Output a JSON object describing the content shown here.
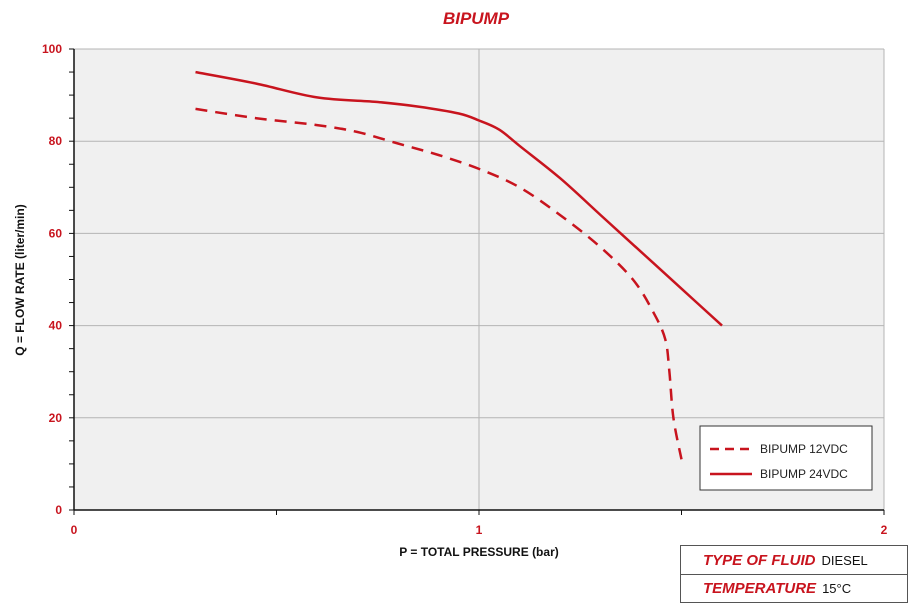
{
  "chart_data": {
    "type": "line",
    "title": "BIPUMP",
    "xlabel": "P = TOTAL PRESSURE (bar)",
    "ylabel": "Q = FLOW RATE (liter/min)",
    "xlim": [
      0,
      2
    ],
    "ylim": [
      0,
      100
    ],
    "xticks": [
      0,
      1,
      2
    ],
    "yticks": [
      0,
      20,
      40,
      60,
      80,
      100
    ],
    "grid": true,
    "legend_position": "bottom-right",
    "colors": {
      "series": "#c8141e",
      "plot_bg": "#f0f0f0",
      "grid": "#b4b4b4"
    },
    "series": [
      {
        "name": "BIPUMP 12VDC",
        "style": "dashed",
        "x": [
          0.3,
          0.45,
          0.6,
          0.7,
          0.8,
          0.9,
          1.0,
          1.1,
          1.2,
          1.3,
          1.38,
          1.43,
          1.46,
          1.47,
          1.48,
          1.5
        ],
        "y": [
          87,
          85,
          83.5,
          82,
          79.5,
          77,
          74,
          70,
          64,
          57,
          50,
          43,
          37,
          30,
          20,
          11
        ]
      },
      {
        "name": "BIPUMP 24VDC",
        "style": "solid",
        "x": [
          0.3,
          0.45,
          0.6,
          0.75,
          0.85,
          0.95,
          1.0,
          1.05,
          1.1,
          1.2,
          1.3,
          1.4,
          1.5,
          1.6
        ],
        "y": [
          95,
          92.5,
          89.5,
          88.5,
          87.5,
          86,
          84.5,
          82.5,
          79,
          72,
          64,
          56,
          48,
          40
        ]
      }
    ]
  },
  "info": [
    {
      "key": "TYPE OF FLUID",
      "value": "DIESEL"
    },
    {
      "key": "TEMPERATURE",
      "value": "15°C"
    }
  ]
}
